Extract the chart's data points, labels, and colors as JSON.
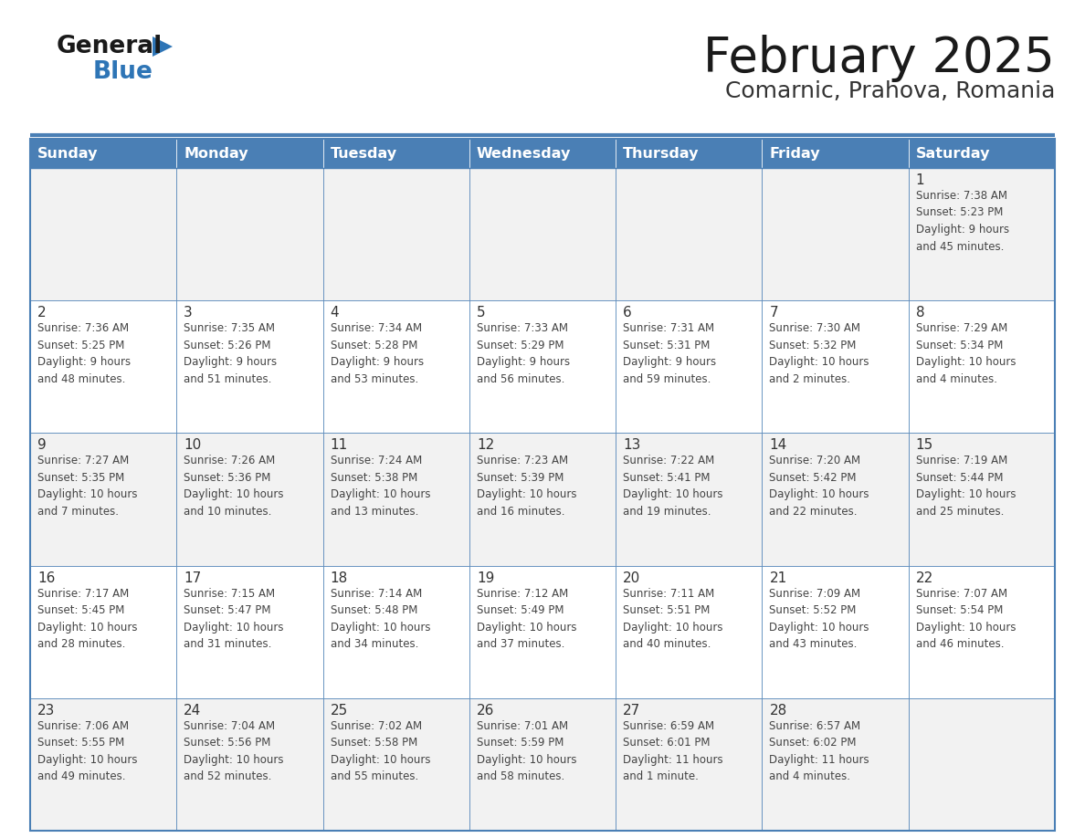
{
  "title": "February 2025",
  "subtitle": "Comarnic, Prahova, Romania",
  "header_bg": "#4a7fb5",
  "header_text": "#FFFFFF",
  "cell_bg_odd": "#F2F2F2",
  "cell_bg_even": "#FFFFFF",
  "border_color": "#4a7fb5",
  "sep_color": "#4a7fb5",
  "day_headers": [
    "Sunday",
    "Monday",
    "Tuesday",
    "Wednesday",
    "Thursday",
    "Friday",
    "Saturday"
  ],
  "title_color": "#1a1a1a",
  "subtitle_color": "#333333",
  "day_num_color": "#333333",
  "info_color": "#444444",
  "logo_general_color": "#1a1a1a",
  "logo_blue_color": "#2E75B6",
  "weeks": [
    [
      {
        "day": null,
        "info": ""
      },
      {
        "day": null,
        "info": ""
      },
      {
        "day": null,
        "info": ""
      },
      {
        "day": null,
        "info": ""
      },
      {
        "day": null,
        "info": ""
      },
      {
        "day": null,
        "info": ""
      },
      {
        "day": 1,
        "info": "Sunrise: 7:38 AM\nSunset: 5:23 PM\nDaylight: 9 hours\nand 45 minutes."
      }
    ],
    [
      {
        "day": 2,
        "info": "Sunrise: 7:36 AM\nSunset: 5:25 PM\nDaylight: 9 hours\nand 48 minutes."
      },
      {
        "day": 3,
        "info": "Sunrise: 7:35 AM\nSunset: 5:26 PM\nDaylight: 9 hours\nand 51 minutes."
      },
      {
        "day": 4,
        "info": "Sunrise: 7:34 AM\nSunset: 5:28 PM\nDaylight: 9 hours\nand 53 minutes."
      },
      {
        "day": 5,
        "info": "Sunrise: 7:33 AM\nSunset: 5:29 PM\nDaylight: 9 hours\nand 56 minutes."
      },
      {
        "day": 6,
        "info": "Sunrise: 7:31 AM\nSunset: 5:31 PM\nDaylight: 9 hours\nand 59 minutes."
      },
      {
        "day": 7,
        "info": "Sunrise: 7:30 AM\nSunset: 5:32 PM\nDaylight: 10 hours\nand 2 minutes."
      },
      {
        "day": 8,
        "info": "Sunrise: 7:29 AM\nSunset: 5:34 PM\nDaylight: 10 hours\nand 4 minutes."
      }
    ],
    [
      {
        "day": 9,
        "info": "Sunrise: 7:27 AM\nSunset: 5:35 PM\nDaylight: 10 hours\nand 7 minutes."
      },
      {
        "day": 10,
        "info": "Sunrise: 7:26 AM\nSunset: 5:36 PM\nDaylight: 10 hours\nand 10 minutes."
      },
      {
        "day": 11,
        "info": "Sunrise: 7:24 AM\nSunset: 5:38 PM\nDaylight: 10 hours\nand 13 minutes."
      },
      {
        "day": 12,
        "info": "Sunrise: 7:23 AM\nSunset: 5:39 PM\nDaylight: 10 hours\nand 16 minutes."
      },
      {
        "day": 13,
        "info": "Sunrise: 7:22 AM\nSunset: 5:41 PM\nDaylight: 10 hours\nand 19 minutes."
      },
      {
        "day": 14,
        "info": "Sunrise: 7:20 AM\nSunset: 5:42 PM\nDaylight: 10 hours\nand 22 minutes."
      },
      {
        "day": 15,
        "info": "Sunrise: 7:19 AM\nSunset: 5:44 PM\nDaylight: 10 hours\nand 25 minutes."
      }
    ],
    [
      {
        "day": 16,
        "info": "Sunrise: 7:17 AM\nSunset: 5:45 PM\nDaylight: 10 hours\nand 28 minutes."
      },
      {
        "day": 17,
        "info": "Sunrise: 7:15 AM\nSunset: 5:47 PM\nDaylight: 10 hours\nand 31 minutes."
      },
      {
        "day": 18,
        "info": "Sunrise: 7:14 AM\nSunset: 5:48 PM\nDaylight: 10 hours\nand 34 minutes."
      },
      {
        "day": 19,
        "info": "Sunrise: 7:12 AM\nSunset: 5:49 PM\nDaylight: 10 hours\nand 37 minutes."
      },
      {
        "day": 20,
        "info": "Sunrise: 7:11 AM\nSunset: 5:51 PM\nDaylight: 10 hours\nand 40 minutes."
      },
      {
        "day": 21,
        "info": "Sunrise: 7:09 AM\nSunset: 5:52 PM\nDaylight: 10 hours\nand 43 minutes."
      },
      {
        "day": 22,
        "info": "Sunrise: 7:07 AM\nSunset: 5:54 PM\nDaylight: 10 hours\nand 46 minutes."
      }
    ],
    [
      {
        "day": 23,
        "info": "Sunrise: 7:06 AM\nSunset: 5:55 PM\nDaylight: 10 hours\nand 49 minutes."
      },
      {
        "day": 24,
        "info": "Sunrise: 7:04 AM\nSunset: 5:56 PM\nDaylight: 10 hours\nand 52 minutes."
      },
      {
        "day": 25,
        "info": "Sunrise: 7:02 AM\nSunset: 5:58 PM\nDaylight: 10 hours\nand 55 minutes."
      },
      {
        "day": 26,
        "info": "Sunrise: 7:01 AM\nSunset: 5:59 PM\nDaylight: 10 hours\nand 58 minutes."
      },
      {
        "day": 27,
        "info": "Sunrise: 6:59 AM\nSunset: 6:01 PM\nDaylight: 11 hours\nand 1 minute."
      },
      {
        "day": 28,
        "info": "Sunrise: 6:57 AM\nSunset: 6:02 PM\nDaylight: 11 hours\nand 4 minutes."
      },
      {
        "day": null,
        "info": ""
      }
    ]
  ]
}
